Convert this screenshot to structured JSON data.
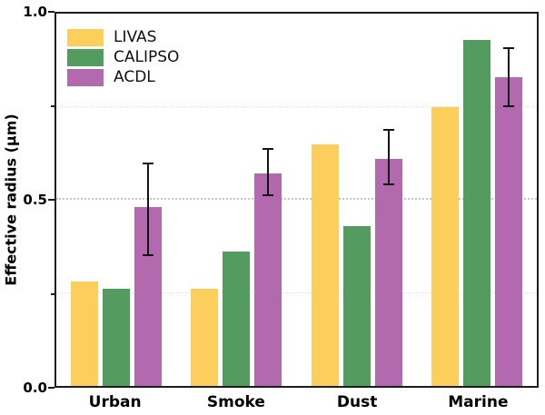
{
  "chart_data": {
    "type": "bar",
    "title": "",
    "xlabel": "",
    "ylabel": "Effective radius (µm)",
    "categories": [
      "Urban",
      "Smoke",
      "Dust",
      "Marine"
    ],
    "series": [
      {
        "name": "LIVAS",
        "color": "#FCCE5C",
        "values": [
          0.28,
          0.26,
          0.65,
          0.75
        ]
      },
      {
        "name": "CALIPSO",
        "color": "#549B60",
        "values": [
          0.26,
          0.36,
          0.43,
          0.93
        ]
      },
      {
        "name": "ACDL",
        "color": "#B269AD",
        "values": [
          0.48,
          0.57,
          0.61,
          0.83
        ],
        "error_bars": [
          {
            "low": 0.35,
            "high": 0.6
          },
          {
            "low": 0.51,
            "high": 0.64
          },
          {
            "low": 0.54,
            "high": 0.69
          },
          {
            "low": 0.75,
            "high": 0.91
          }
        ]
      }
    ],
    "ylim": [
      0.0,
      1.0
    ],
    "ytick_labels": [
      "0.0",
      "0.5",
      "1.0"
    ],
    "yticks_major": [
      0.0,
      0.5,
      1.0
    ],
    "yticks_minor": [
      0.25,
      0.75
    ],
    "gridlines": [
      0.25,
      0.5,
      0.75
    ],
    "grid_style": "dotted",
    "legend_position": "upper-left",
    "error_bar_color": "#141414",
    "axis_color": "#1c1c1c"
  }
}
